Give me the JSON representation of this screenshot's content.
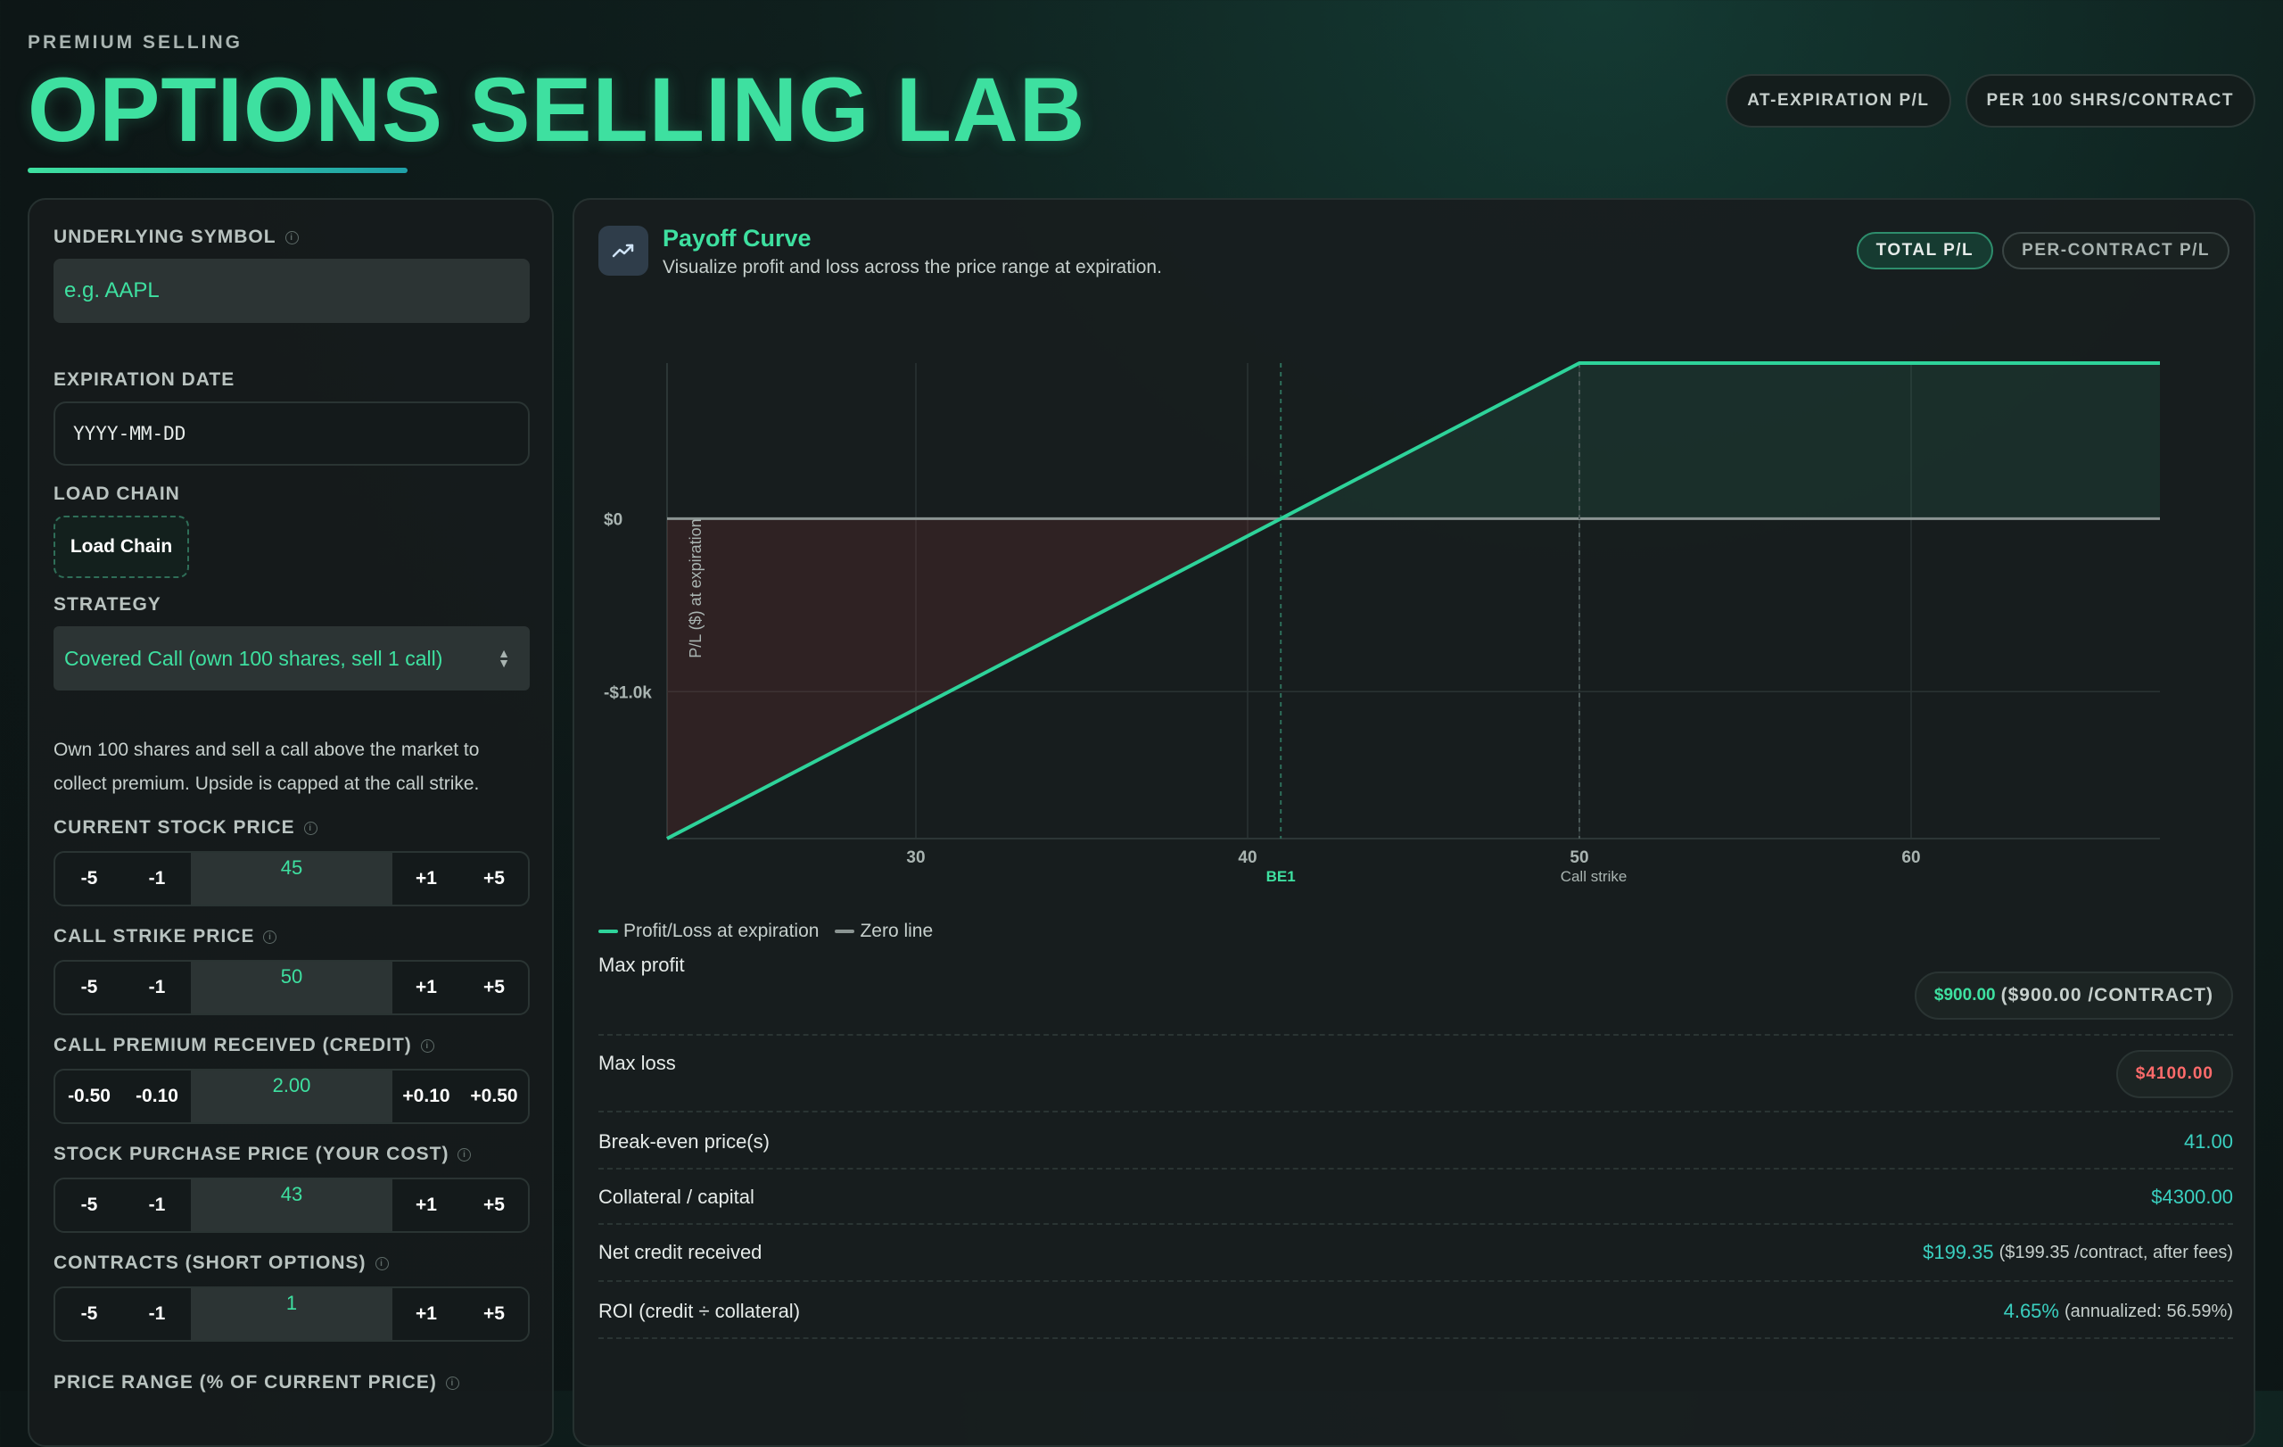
{
  "header": {
    "eyebrow": "PREMIUM SELLING",
    "title": "OPTIONS SELLING LAB",
    "pills": [
      "AT-EXPIRATION P/L",
      "PER 100 SHRS/CONTRACT"
    ]
  },
  "form": {
    "symbol": {
      "label": "UNDERLYING SYMBOL",
      "placeholder": "e.g. AAPL"
    },
    "expiration": {
      "label": "EXPIRATION DATE",
      "placeholder": "YYYY-MM-DD"
    },
    "load_chain": {
      "label": "LOAD CHAIN",
      "button": "Load Chain"
    },
    "strategy": {
      "label": "STRATEGY",
      "value": "Covered Call (own 100 shares, sell 1 call)"
    },
    "description": "Own 100 shares and sell a call above the market to collect premium. Upside is capped at the call strike.",
    "steppers": [
      {
        "label": "CURRENT STOCK PRICE",
        "value": "45",
        "dec": [
          "-5",
          "-1"
        ],
        "inc": [
          "+1",
          "+5"
        ]
      },
      {
        "label": "CALL STRIKE PRICE",
        "value": "50",
        "dec": [
          "-5",
          "-1"
        ],
        "inc": [
          "+1",
          "+5"
        ]
      },
      {
        "label": "CALL PREMIUM RECEIVED (CREDIT)",
        "value": "2.00",
        "dec": [
          "-0.50",
          "-0.10"
        ],
        "inc": [
          "+0.10",
          "+0.50"
        ]
      },
      {
        "label": "STOCK PURCHASE PRICE (YOUR COST)",
        "value": "43",
        "dec": [
          "-5",
          "-1"
        ],
        "inc": [
          "+1",
          "+5"
        ]
      },
      {
        "label": "CONTRACTS (SHORT OPTIONS)",
        "value": "1",
        "dec": [
          "-5",
          "-1"
        ],
        "inc": [
          "+1",
          "+5"
        ]
      }
    ],
    "price_range_label": "PRICE RANGE (% OF CURRENT PRICE)"
  },
  "payoff": {
    "title": "Payoff Curve",
    "subtitle": "Visualize profit and loss across the price range at expiration.",
    "toggles": [
      "TOTAL P/L",
      "PER-CONTRACT P/L"
    ],
    "icon": "trend-chart-icon"
  },
  "chart_data": {
    "type": "line",
    "x": [
      22.5,
      50,
      67.5
    ],
    "series": [
      {
        "name": "Profit/Loss at expiration",
        "values": [
          -1850,
          900,
          900
        ],
        "color": "#2ed39a"
      },
      {
        "name": "Zero line",
        "values": [
          0,
          0,
          0
        ],
        "color": "#8a9492"
      }
    ],
    "xlim": [
      22.5,
      67.5
    ],
    "ylim": [
      -1850,
      900
    ],
    "x_ticks": [
      30,
      40,
      50,
      60
    ],
    "y_ticks": [
      {
        "value": 0,
        "label": "$0"
      },
      {
        "value": -1000,
        "label": "-$1.0k"
      }
    ],
    "ylabel": "P/L ($) at expiration",
    "annotations": [
      {
        "x": 41,
        "label": "BE1",
        "color": "#3ee0a0"
      },
      {
        "x": 50,
        "label": "Call strike",
        "color": "#a9b4b1"
      }
    ],
    "grid": true
  },
  "metrics": {
    "max_profit": {
      "label": "Max profit",
      "value": "$900.00",
      "extra": "($900.00 /CONTRACT)"
    },
    "max_loss": {
      "label": "Max loss",
      "value": "$4100.00"
    },
    "breakeven": {
      "label": "Break-even price(s)",
      "value": "41.00"
    },
    "collateral": {
      "label": "Collateral / capital",
      "value": "$4300.00"
    },
    "net_credit": {
      "label": "Net credit received",
      "value": "$199.35",
      "extra": "($199.35 /contract, after fees)"
    },
    "roi": {
      "label": "ROI (credit ÷ collateral)",
      "value": "4.65%",
      "extra": "(annualized: 56.59%)"
    }
  },
  "colors": {
    "accent": "#3ee0a0",
    "loss": "#ff6b6b",
    "teal": "#3ad0c0"
  }
}
